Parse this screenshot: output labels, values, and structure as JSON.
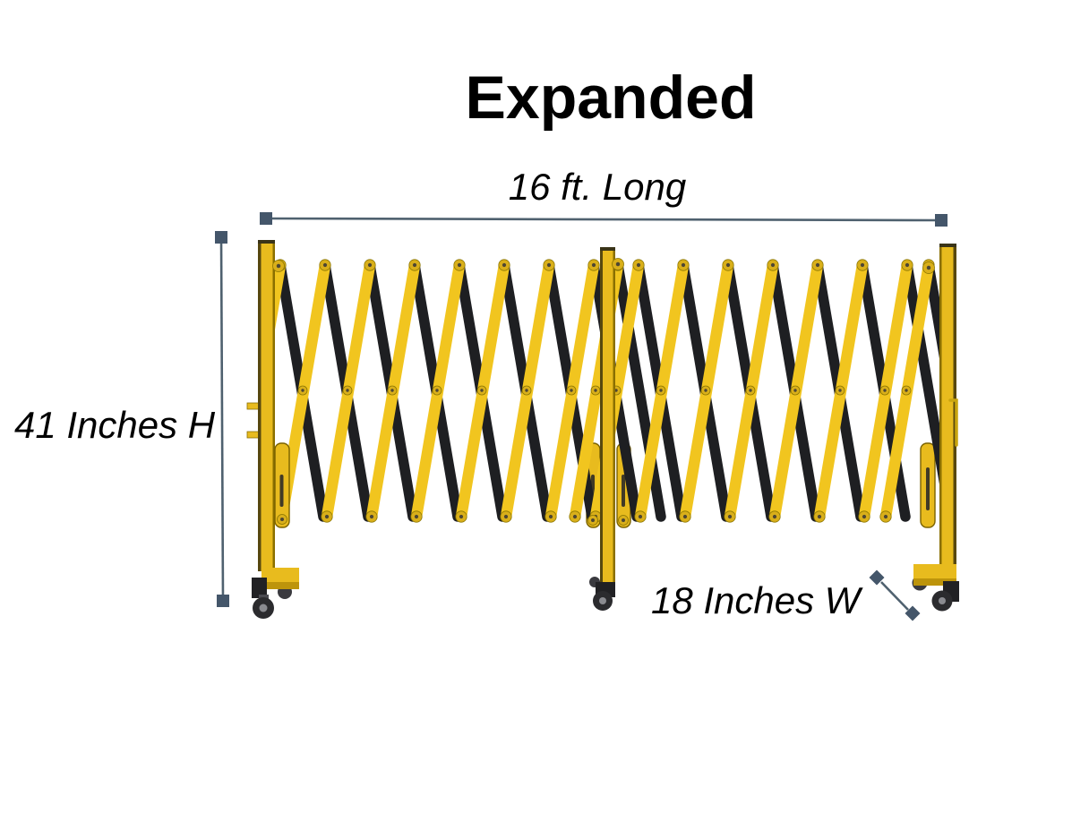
{
  "title": "Expanded",
  "dimension_labels": {
    "length": "16 ft. Long",
    "height": "41 Inches H",
    "width": "18 Inches W"
  },
  "illustration": {
    "name": "expandable-barricade-expanded-view",
    "description": "Yellow and black accordion scissor safety barricade, fully expanded, with three vertical posts on caster wheels",
    "colors": {
      "background": "#FFFFFF",
      "text": "#000000",
      "slat_yellow": "#F1C51F",
      "slat_black": "#1E1F22",
      "post_yellow": "#E8BB1E",
      "post_shadow": "#57480E",
      "post_edge": "#8A6F00",
      "rivet": "#D9AF1A",
      "rivet_dot": "#4E4733",
      "base_black": "#212124",
      "wheel": "#2B2B2E",
      "wheel_hub": "#8A8B90",
      "dimension_line": "#4F616F",
      "dimension_marker": "#44566A"
    }
  }
}
